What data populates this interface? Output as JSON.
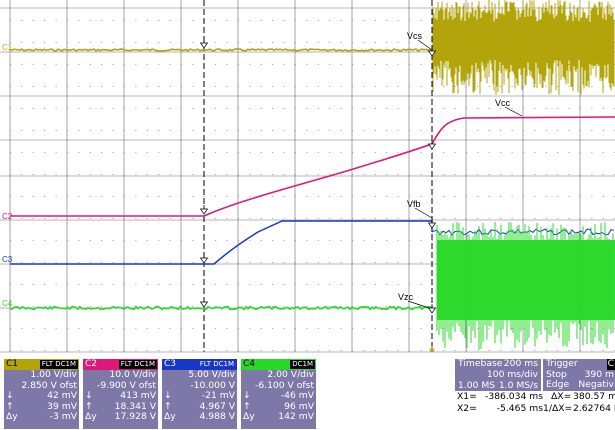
{
  "channels": [
    {
      "id": "C1",
      "label": "C1",
      "color": "#b2a40a",
      "tags": "FLT DC1M",
      "vdiv": "1.00 V/div",
      "offset": "2.850 V ofst",
      "max": "42 mV",
      "min": "39 mV",
      "dy": "-3 mV"
    },
    {
      "id": "C2",
      "label": "C2",
      "color": "#e0187a",
      "tags": "FLT DC1M",
      "vdiv": "10.0 V/div",
      "offset": "-9.900 V ofst",
      "max": "413 mV",
      "min": "18.341 V",
      "dy": "17.928 V"
    },
    {
      "id": "C3",
      "label": "C3",
      "color": "#1836c8",
      "tags": "FLT DC1M",
      "vdiv": "5.00 V/div",
      "offset": "-10.000 V",
      "max": "-21 mV",
      "min": "4.967 V",
      "dy": "4.988 V"
    },
    {
      "id": "C4",
      "label": "C4",
      "color": "#28d828",
      "tags": "DC1M",
      "vdiv": "2.00 V/div",
      "offset": "-6.100 V ofst",
      "max": "-46 mV",
      "min": "96 mV",
      "dy": "142 mV"
    }
  ],
  "symbols": {
    "down": "↓",
    "up": "↑",
    "dy": "Δy"
  },
  "waveform_labels": {
    "vcs": "Vcs",
    "vcc": "Vcc",
    "vfb": "Vfb",
    "vzc": "Vzc"
  },
  "timebase": {
    "title": "Timebase",
    "value": "200 ms",
    "rate_row": "100 ms/div",
    "samples": "1.00 MS",
    "sample_rate": "1.0 MS/s"
  },
  "trigger": {
    "title": "Trigger",
    "channel": "C",
    "mode": "Stop",
    "level": "390 m",
    "type": "Edge",
    "slope": "Negativ"
  },
  "cursors": {
    "x1_label": "X1=",
    "x1_value": "-386.034 ms",
    "dx_label": "ΔX=",
    "dx_value": "380.57 m",
    "x2_label": "X2=",
    "x2_value": "-5.465 ms",
    "inv_dx_label": "1/ΔX=",
    "inv_dx_value": "2.62764 H"
  },
  "colors": {
    "grid": "#6a6a6a",
    "grid_dots": "#9a9a9a",
    "panel_bg": "#7e78a8"
  },
  "icons": {
    "trigger_marker": "triangle-up",
    "cursor_marker": "arrow-down"
  }
}
